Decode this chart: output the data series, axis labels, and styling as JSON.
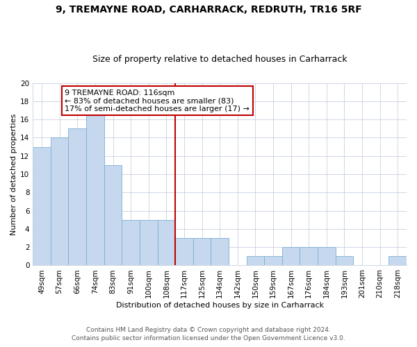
{
  "title1": "9, TREMAYNE ROAD, CARHARRACK, REDRUTH, TR16 5RF",
  "title2": "Size of property relative to detached houses in Carharrack",
  "xlabel": "Distribution of detached houses by size in Carharrack",
  "ylabel": "Number of detached properties",
  "categories": [
    "49sqm",
    "57sqm",
    "66sqm",
    "74sqm",
    "83sqm",
    "91sqm",
    "100sqm",
    "108sqm",
    "117sqm",
    "125sqm",
    "134sqm",
    "142sqm",
    "150sqm",
    "159sqm",
    "167sqm",
    "176sqm",
    "184sqm",
    "193sqm",
    "201sqm",
    "210sqm",
    "218sqm"
  ],
  "values": [
    13,
    14,
    15,
    17,
    11,
    5,
    5,
    5,
    3,
    3,
    3,
    0,
    1,
    1,
    2,
    2,
    2,
    1,
    0,
    0,
    1
  ],
  "bar_color": "#c5d8ed",
  "bar_edge_color": "#7bafd4",
  "vline_color": "#c00000",
  "annotation_text": "9 TREMAYNE ROAD: 116sqm\n← 83% of detached houses are smaller (83)\n17% of semi-detached houses are larger (17) →",
  "annotation_box_color": "#c00000",
  "ylim": [
    0,
    20
  ],
  "yticks": [
    0,
    2,
    4,
    6,
    8,
    10,
    12,
    14,
    16,
    18,
    20
  ],
  "grid_color": "#c8d0e0",
  "footer1": "Contains HM Land Registry data © Crown copyright and database right 2024.",
  "footer2": "Contains public sector information licensed under the Open Government Licence v3.0.",
  "title1_fontsize": 10,
  "title2_fontsize": 9,
  "xlabel_fontsize": 8,
  "ylabel_fontsize": 8,
  "tick_fontsize": 7.5,
  "footer_fontsize": 6.5,
  "ann_fontsize": 8
}
